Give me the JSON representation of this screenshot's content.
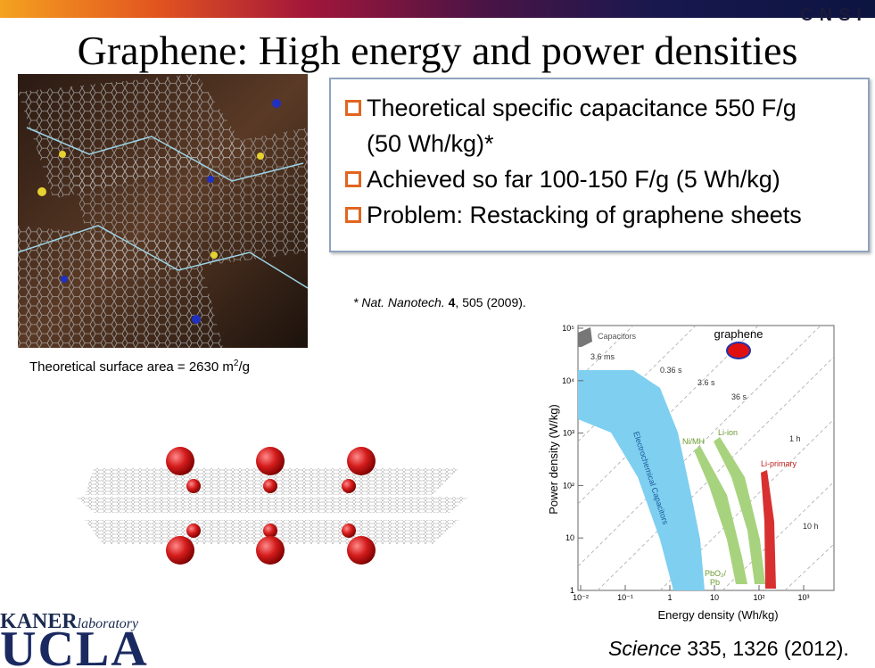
{
  "header": {
    "logo": "CNSI",
    "title": "Graphene: High energy and power densities"
  },
  "bullets": [
    "Theoretical specific capacitance 550 F/g",
    "(50 Wh/kg)*",
    "Achieved so far 100-150 F/g (5 Wh/kg)",
    "Problem: Restacking of graphene sheets"
  ],
  "footnote": {
    "star": "* ",
    "journal": "Nat. Nanotech.",
    "volume": "4",
    "rest": ", 505 (2009)."
  },
  "caption": {
    "text": "Theoretical surface area = 2630 m",
    "sup": "2",
    "unit": "/g"
  },
  "plot": {
    "y_label": "Power density (W/kg)",
    "x_label": "Energy density (Wh/kg)",
    "y_ticks": [
      "10⁵",
      "10⁴",
      "10³",
      "10²",
      "10",
      "1"
    ],
    "x_ticks": [
      "10⁻²",
      "10⁻¹",
      "1",
      "10",
      "10²",
      "10³"
    ],
    "times": [
      "3.6 ms",
      "0.36 s",
      "3.6 s",
      "36 s",
      "1 h",
      "10 h"
    ],
    "regions": {
      "capacitors": "Capacitors",
      "ec": "Electrochemical Capacitors",
      "nimh": "Ni/MH",
      "liion": "Li-ion",
      "liprimary": "Li-primary",
      "pbo2": "PbO₂/",
      "pb": "Pb"
    },
    "graphene": "graphene"
  },
  "citation": {
    "journal": "Science",
    "rest": " 335, 1326 (2012)."
  },
  "logo": {
    "kaner": "KANER",
    "lab": "laboratory",
    "ucla": "UCLA"
  }
}
